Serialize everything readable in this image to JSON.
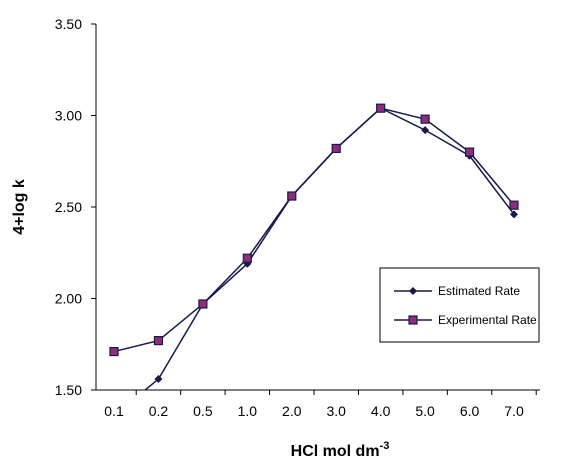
{
  "chart_data": {
    "type": "line",
    "categories": [
      "0.1",
      "0.2",
      "0.5",
      "1.0",
      "2.0",
      "3.0",
      "4.0",
      "5.0",
      "6.0",
      "7.0"
    ],
    "ylabel": "4+log k",
    "xlabel": {
      "base": "HCl mol dm",
      "superscript": "-3"
    },
    "ylim": [
      1.5,
      3.5
    ],
    "yticks": [
      "1.50",
      "2.00",
      "2.50",
      "3.00",
      "3.50"
    ],
    "grid": false,
    "legend_position": "right",
    "series": [
      {
        "name": "Estimated Rate",
        "marker": "diamond",
        "color": "#1a1a4a",
        "values": [
          1.36,
          1.56,
          1.97,
          2.19,
          2.56,
          2.82,
          3.04,
          2.92,
          2.78,
          2.46
        ]
      },
      {
        "name": "Experimental Rate",
        "marker": "square",
        "color": "#1a1a4a",
        "fill": "#8b2f7a",
        "values": [
          1.71,
          1.77,
          1.97,
          2.22,
          2.56,
          2.82,
          3.04,
          2.98,
          2.8,
          2.51
        ]
      }
    ]
  }
}
